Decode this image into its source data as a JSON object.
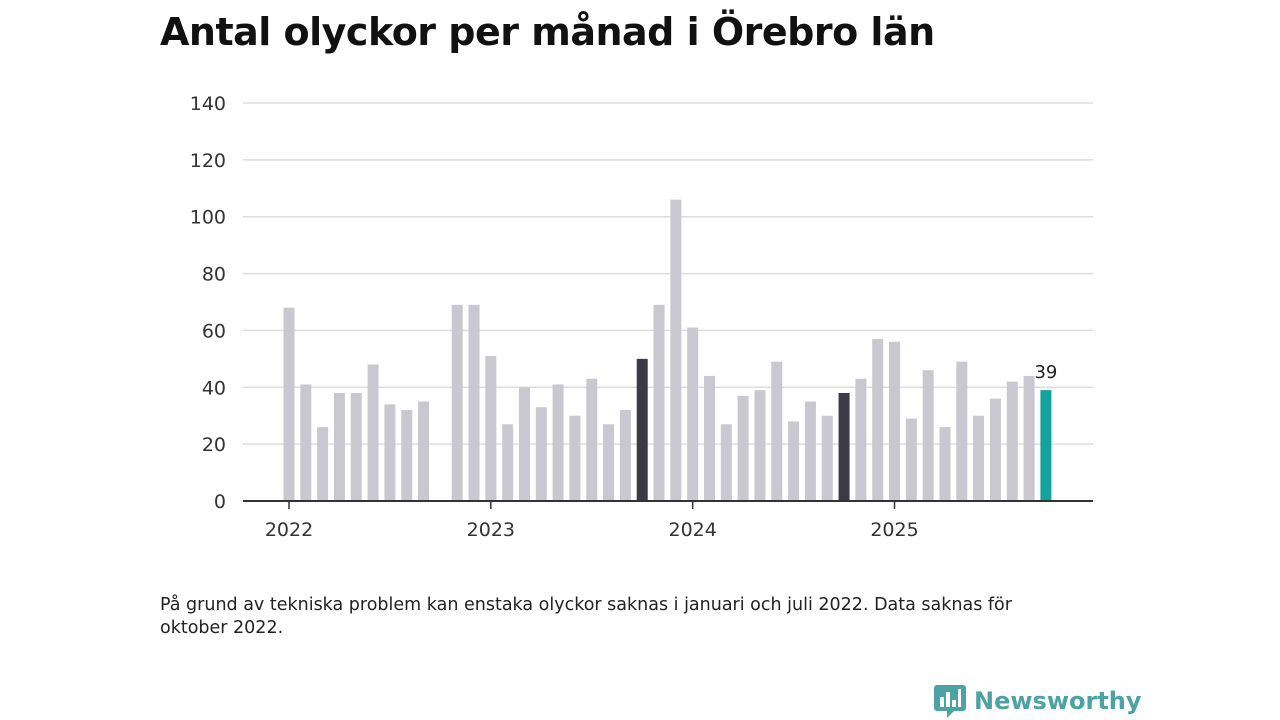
{
  "title": "Antal olyckor per månad i Örebro län",
  "footnote": "På grund av tekniska problem kan enstaka olyckor saknas i januari och juli 2022. Data saknas för oktober 2022.",
  "brand": {
    "name": "Newsworthy",
    "icon": "newsworthy-logo-icon"
  },
  "colors": {
    "default": "#c9c8d0",
    "highlight": "#3b3b48",
    "current": "#13a39a",
    "grid": "#dddddd",
    "axis": "#333333",
    "brand": "#4ba3a3"
  },
  "chart_data": {
    "type": "bar",
    "title": "Antal olyckor per månad i Örebro län",
    "xlabel": "",
    "ylabel": "",
    "ylim": [
      0,
      140
    ],
    "yticks": [
      0,
      20,
      40,
      60,
      80,
      100,
      120,
      140
    ],
    "xtick_labels": [
      "2022",
      "2023",
      "2024",
      "2025"
    ],
    "categories": [
      "2022-01",
      "2022-02",
      "2022-03",
      "2022-04",
      "2022-05",
      "2022-06",
      "2022-07",
      "2022-08",
      "2022-09",
      "2022-10",
      "2022-11",
      "2022-12",
      "2023-01",
      "2023-02",
      "2023-03",
      "2023-04",
      "2023-05",
      "2023-06",
      "2023-07",
      "2023-08",
      "2023-09",
      "2023-10",
      "2023-11",
      "2023-12",
      "2024-01",
      "2024-02",
      "2024-03",
      "2024-04",
      "2024-05",
      "2024-06",
      "2024-07",
      "2024-08",
      "2024-09",
      "2024-10",
      "2024-11",
      "2024-12",
      "2025-01",
      "2025-02",
      "2025-03",
      "2025-04",
      "2025-05",
      "2025-06",
      "2025-07",
      "2025-08",
      "2025-09",
      "2025-10"
    ],
    "values": [
      68,
      41,
      26,
      38,
      38,
      48,
      34,
      32,
      35,
      null,
      69,
      69,
      51,
      27,
      40,
      33,
      41,
      30,
      43,
      27,
      32,
      50,
      69,
      106,
      61,
      44,
      27,
      37,
      39,
      49,
      28,
      35,
      30,
      38,
      43,
      57,
      56,
      29,
      46,
      26,
      49,
      30,
      36,
      42,
      44,
      39
    ],
    "highlighted": [
      "2023-10",
      "2024-10"
    ],
    "current": "2025-10",
    "data_labels": [
      {
        "category": "2025-10",
        "text": "39"
      }
    ]
  }
}
